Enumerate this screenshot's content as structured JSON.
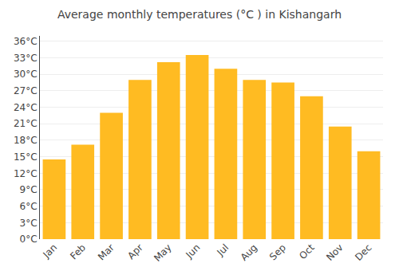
{
  "chart_data": {
    "type": "bar",
    "title": "Average monthly temperatures (°C ) in Kishangarh",
    "categories": [
      "Jan",
      "Feb",
      "Mar",
      "Apr",
      "May",
      "Jun",
      "Jul",
      "Aug",
      "Sep",
      "Oct",
      "Nov",
      "Dec"
    ],
    "values": [
      14.5,
      17.2,
      23.0,
      29.0,
      32.2,
      33.5,
      31.0,
      29.0,
      28.5,
      26.0,
      20.5,
      16.0
    ],
    "color": "#FFBB22",
    "ylim": [
      0,
      37
    ],
    "yticks": [
      {
        "value": 0,
        "label": "0°C"
      },
      {
        "value": 3,
        "label": "3°C"
      },
      {
        "value": 6,
        "label": "6°C"
      },
      {
        "value": 9,
        "label": "9°C"
      },
      {
        "value": 12,
        "label": "12°C"
      },
      {
        "value": 15,
        "label": "15°C"
      },
      {
        "value": 18,
        "label": "18°C"
      },
      {
        "value": 21,
        "label": "21°C"
      },
      {
        "value": 24,
        "label": "24°C"
      },
      {
        "value": 27,
        "label": "27°C"
      },
      {
        "value": 30,
        "label": "30°C"
      },
      {
        "value": 33,
        "label": "33°C"
      },
      {
        "value": 36,
        "label": "36°C"
      }
    ],
    "grid": true
  }
}
